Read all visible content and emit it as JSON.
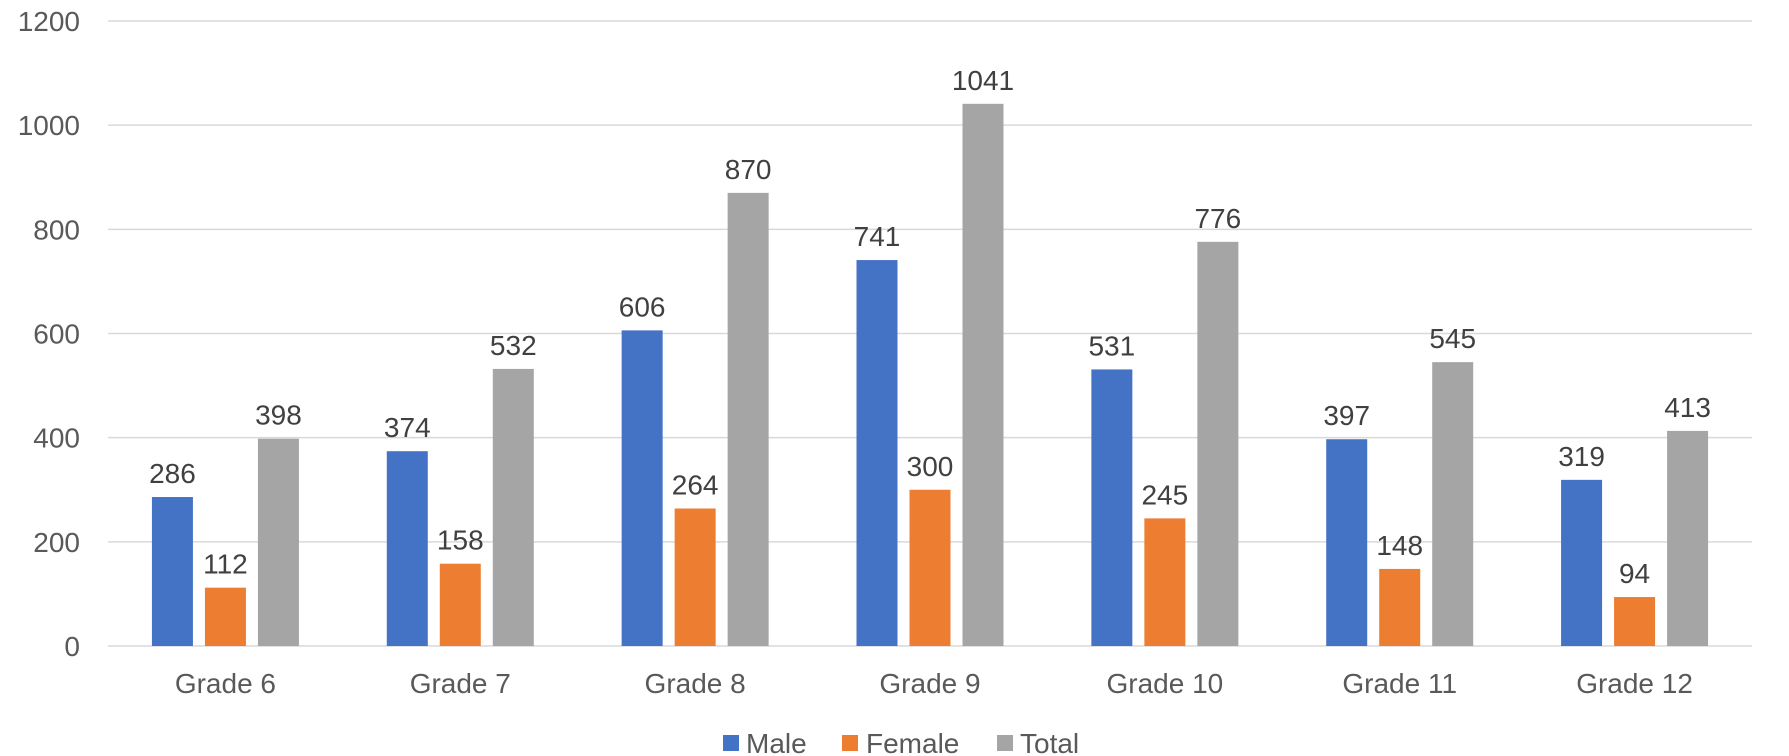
{
  "chart_data": {
    "type": "bar",
    "categories": [
      "Grade 6",
      "Grade 7",
      "Grade 8",
      "Grade 9",
      "Grade 10",
      "Grade 11",
      "Grade 12"
    ],
    "series": [
      {
        "name": "Male",
        "color": "#4472c4",
        "values": [
          286,
          374,
          606,
          741,
          531,
          397,
          319
        ]
      },
      {
        "name": "Female",
        "color": "#ed7d31",
        "values": [
          112,
          158,
          264,
          300,
          245,
          148,
          94
        ]
      },
      {
        "name": "Total",
        "color": "#a5a5a5",
        "values": [
          398,
          532,
          870,
          1041,
          776,
          545,
          413
        ]
      }
    ],
    "title": "",
    "xlabel": "",
    "ylabel": "",
    "ylim": [
      0,
      1200
    ],
    "yticks": [
      0,
      200,
      400,
      600,
      800,
      1000,
      1200
    ],
    "grid": true,
    "data_labels": true,
    "legend_position": "bottom"
  }
}
